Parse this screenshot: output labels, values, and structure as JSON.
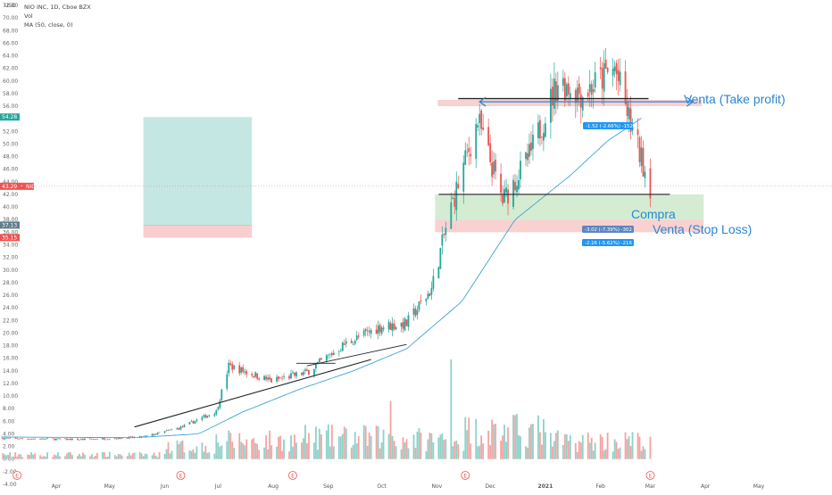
{
  "header": {
    "currency": "USD",
    "symbol_line": "NIO INC, 1D, Cboe BZX",
    "vol_label": "Vol",
    "ma_label": "MA (50, close, 0)"
  },
  "price_tags": [
    {
      "text": "54.28",
      "value": 54.28,
      "color": "#26a69a"
    },
    {
      "text": "43.29 ・ NIO",
      "value": 43.29,
      "color": "#ef5350"
    },
    {
      "text": "37.13",
      "value": 37.13,
      "color": "#607d8b"
    },
    {
      "text": "35.15",
      "value": 35.15,
      "color": "#ef5350"
    }
  ],
  "annotations": {
    "take_profit": "Venta (Take profit)",
    "buy": "Compra",
    "stop_loss": "Venta (Stop Loss)"
  },
  "measure_labels": {
    "top": "-1.52 (-2.66%) -152",
    "mid": "-3.02 (-7.39%) -302",
    "low": "-2.16 (-5.62%) -216"
  },
  "earnings_marker": "E",
  "colors": {
    "up": "#26a69a",
    "down": "#ef5350",
    "ma": "#3fa3d6",
    "annotation": "#2a86d3",
    "target_zone": "#b2dfdb",
    "stop_zone": "#f8c9c9"
  },
  "chart_data": {
    "type": "candlestick",
    "title": "NIO INC, 1D, Cboe BZX",
    "ylabel": "USD",
    "ylim": [
      -4,
      72
    ],
    "ytick_step": 2,
    "x_labels": [
      "Apr",
      "May",
      "Jun",
      "Jul",
      "Aug",
      "Sep",
      "Oct",
      "Nov",
      "Dec",
      "2021",
      "Feb",
      "Mar",
      "Apr",
      "May"
    ],
    "x_label_dates": [
      "2020-04-01",
      "2020-05-01",
      "2020-06-01",
      "2020-07-01",
      "2020-08-01",
      "2020-09-01",
      "2020-10-01",
      "2020-11-01",
      "2020-12-01",
      "2021-01-01",
      "2021-02-01",
      "2021-03-01",
      "2021-04-01",
      "2021-05-01"
    ],
    "series": [
      {
        "name": "NIO INC",
        "approx_close_anchors": [
          [
            "2020-03-01",
            3.3
          ],
          [
            "2020-04-15",
            3.1
          ],
          [
            "2020-05-20",
            3.5
          ],
          [
            "2020-06-10",
            5.0
          ],
          [
            "2020-06-30",
            7.6
          ],
          [
            "2020-07-07",
            14.8
          ],
          [
            "2020-07-31",
            12.4
          ],
          [
            "2020-08-20",
            13.8
          ],
          [
            "2020-09-10",
            18.2
          ],
          [
            "2020-09-30",
            21.0
          ],
          [
            "2020-10-15",
            21.5
          ],
          [
            "2020-10-29",
            27.0
          ],
          [
            "2020-11-08",
            39.0
          ],
          [
            "2020-11-24",
            53.7
          ],
          [
            "2020-12-08",
            41.0
          ],
          [
            "2020-12-23",
            48.0
          ],
          [
            "2021-01-08",
            60.0
          ],
          [
            "2021-01-22",
            58.0
          ],
          [
            "2021-02-09",
            62.0
          ],
          [
            "2021-02-19",
            52.0
          ],
          [
            "2021-03-01",
            43.29
          ]
        ]
      },
      {
        "name": "MA (50, close, 0)",
        "approx_values": [
          [
            "2020-03-01",
            3.5
          ],
          [
            "2020-05-15",
            3.4
          ],
          [
            "2020-06-20",
            4.0
          ],
          [
            "2020-07-15",
            7.5
          ],
          [
            "2020-08-15",
            11.0
          ],
          [
            "2020-09-15",
            14.0
          ],
          [
            "2020-10-15",
            17.5
          ],
          [
            "2020-11-15",
            25.0
          ],
          [
            "2020-12-15",
            38.0
          ],
          [
            "2021-01-15",
            45.0
          ],
          [
            "2021-02-05",
            50.5
          ],
          [
            "2021-02-25",
            54.28
          ]
        ]
      }
    ],
    "volume_scale_note": "volume bars drawn on the same axis from 0",
    "levels": {
      "resistance": 57.2,
      "buy_line": 42.0,
      "target_zone": [
        54.28,
        37.13
      ],
      "stop_zone": [
        37.13,
        35.15
      ],
      "trade_resistance_band": [
        57.0,
        56.0
      ],
      "buy_band": [
        42.0,
        38.0
      ],
      "stop_band": [
        38.0,
        36.0
      ]
    },
    "grid": false,
    "legend": "top-left"
  }
}
